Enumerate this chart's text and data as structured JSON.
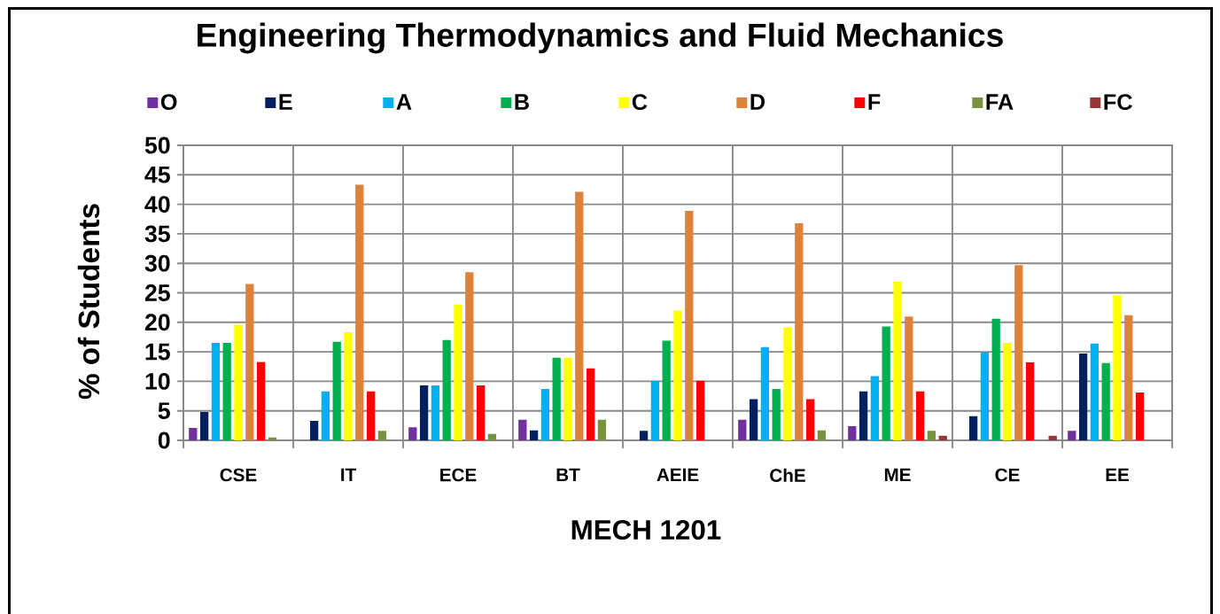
{
  "chart_data": {
    "type": "bar",
    "title": "Engineering Thermodynamics and Fluid Mechanics",
    "xlabel": "MECH 1201",
    "ylabel": "% of Students",
    "categories": [
      "CSE",
      "IT",
      "ECE",
      "BT",
      "AEIE",
      "ChE",
      "ME",
      "CE",
      "EE"
    ],
    "series": [
      {
        "name": "O",
        "color": "#7030a0",
        "values": [
          2.1,
          0,
          2.2,
          3.5,
          0,
          3.5,
          2.4,
          0,
          1.6
        ]
      },
      {
        "name": "E",
        "color": "#002060",
        "values": [
          4.8,
          3.3,
          9.3,
          1.7,
          1.6,
          7.0,
          8.3,
          4.1,
          14.7
        ]
      },
      {
        "name": "A",
        "color": "#00b0f0",
        "values": [
          16.5,
          8.3,
          9.3,
          8.7,
          10.1,
          15.8,
          10.9,
          14.9,
          16.4
        ]
      },
      {
        "name": "B",
        "color": "#00b050",
        "values": [
          16.5,
          16.7,
          17.0,
          14.0,
          16.9,
          8.7,
          19.3,
          20.6,
          13.1
        ]
      },
      {
        "name": "C",
        "color": "#ffff00",
        "values": [
          19.6,
          18.3,
          23.0,
          14.0,
          22.0,
          19.2,
          26.9,
          16.5,
          24.6
        ]
      },
      {
        "name": "D",
        "color": "#dd823b",
        "values": [
          26.5,
          43.3,
          28.5,
          42.1,
          38.9,
          36.8,
          21.0,
          29.7,
          21.2
        ]
      },
      {
        "name": "F",
        "color": "#ff0000",
        "values": [
          13.3,
          8.3,
          9.3,
          12.2,
          10.1,
          7.0,
          8.3,
          13.2,
          8.1
        ]
      },
      {
        "name": "FA",
        "color": "#77933c",
        "values": [
          0.5,
          1.6,
          1.1,
          3.5,
          0,
          1.7,
          1.6,
          0,
          0
        ]
      },
      {
        "name": "FC",
        "color": "#953735",
        "values": [
          0,
          0,
          0,
          0,
          0,
          0,
          0.8,
          0.8,
          0
        ]
      }
    ],
    "ylim": [
      0,
      50
    ],
    "yticks": [
      0,
      5,
      10,
      15,
      20,
      25,
      30,
      35,
      40,
      45,
      50
    ],
    "grid": true,
    "legend": "top"
  }
}
